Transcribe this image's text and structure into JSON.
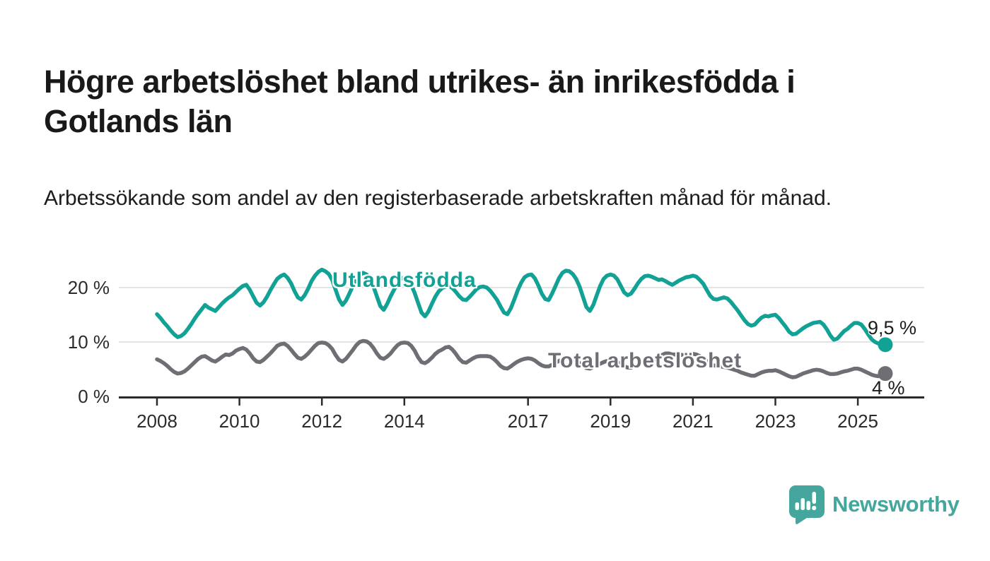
{
  "header": {
    "title": "Högre arbetslöshet bland utrikes- än inrikesfödda i Gotlands län",
    "subtitle": "Arbetssökande som andel av den registerbaserade arbetskraften månad för månad."
  },
  "colors": {
    "foreign_born_line": "#12a195",
    "total_line": "#716d74",
    "grid": "#e4e4e4",
    "axis": "#2b2b2b",
    "text": "#1a1a1a",
    "logo_teal": "#44a69d"
  },
  "chart_data": {
    "type": "line",
    "frequency": "monthly",
    "start": "2008-01",
    "end": "2025-09",
    "grid": "horizontal-only",
    "x_axis": {
      "ticks": [
        {
          "label": "2008",
          "year": 2008
        },
        {
          "label": "2010",
          "year": 2010
        },
        {
          "label": "2012",
          "year": 2012
        },
        {
          "label": "2014",
          "year": 2014
        },
        {
          "label": "2017",
          "year": 2017
        },
        {
          "label": "2019",
          "year": 2019
        },
        {
          "label": "2021",
          "year": 2021
        },
        {
          "label": "2023",
          "year": 2023
        },
        {
          "label": "2025",
          "year": 2025
        }
      ],
      "range_years": [
        2007.1,
        2026.6
      ]
    },
    "y_axis": {
      "ticks": [
        "0 %",
        "10 %",
        "20 %"
      ],
      "tick_values": [
        0,
        10,
        20
      ],
      "range": [
        0,
        24
      ],
      "unit": "%"
    },
    "series": [
      {
        "id": "utlandsfodda",
        "name": "Utlandsfödda",
        "color": "#12a195",
        "end_label": "9,5 %",
        "end_value": 9.5,
        "values": [
          15.1,
          14.4,
          13.6,
          12.9,
          12.1,
          11.4,
          10.9,
          11.1,
          11.6,
          12.4,
          13.3,
          14.3,
          15.2,
          16.0,
          16.8,
          16.3,
          16.0,
          15.7,
          16.4,
          17.1,
          17.7,
          18.2,
          18.6,
          19.2,
          19.8,
          20.3,
          20.5,
          19.6,
          18.4,
          17.2,
          16.7,
          17.3,
          18.3,
          19.5,
          20.6,
          21.6,
          22.1,
          22.4,
          21.8,
          20.8,
          19.4,
          18.2,
          17.8,
          18.6,
          19.8,
          21.2,
          22.2,
          22.9,
          23.3,
          23.0,
          22.5,
          21.4,
          19.6,
          17.8,
          16.8,
          17.6,
          18.9,
          20.3,
          21.5,
          22.3,
          22.7,
          22.4,
          21.6,
          20.2,
          18.4,
          16.6,
          15.9,
          17.0,
          18.4,
          19.6,
          20.8,
          21.6,
          21.9,
          21.4,
          20.5,
          19.0,
          17.2,
          15.4,
          14.7,
          15.6,
          17.0,
          18.3,
          19.3,
          19.9,
          20.2,
          20.3,
          19.9,
          19.2,
          18.4,
          17.8,
          17.7,
          18.3,
          19.0,
          19.7,
          20.1,
          20.2,
          20.0,
          19.4,
          18.6,
          17.7,
          16.5,
          15.4,
          15.1,
          16.2,
          17.8,
          19.5,
          20.9,
          21.9,
          22.3,
          22.4,
          21.7,
          20.4,
          18.9,
          17.9,
          17.7,
          18.9,
          20.3,
          21.7,
          22.7,
          23.1,
          23.0,
          22.5,
          21.6,
          20.2,
          18.3,
          16.4,
          15.7,
          16.8,
          18.6,
          20.3,
          21.6,
          22.2,
          22.4,
          22.2,
          21.5,
          20.3,
          19.1,
          18.6,
          18.9,
          19.8,
          20.8,
          21.6,
          22.1,
          22.2,
          22.0,
          21.7,
          21.4,
          21.5,
          21.2,
          20.8,
          20.5,
          20.9,
          21.3,
          21.6,
          21.9,
          22.0,
          22.2,
          22.0,
          21.4,
          20.7,
          19.6,
          18.5,
          17.9,
          17.8,
          18.0,
          18.2,
          18.0,
          17.4,
          16.6,
          15.8,
          14.9,
          14.0,
          13.3,
          13.0,
          13.2,
          13.9,
          14.5,
          14.8,
          14.7,
          14.9,
          15.0,
          14.4,
          13.6,
          12.8,
          11.9,
          11.4,
          11.5,
          12.0,
          12.5,
          12.9,
          13.2,
          13.5,
          13.6,
          13.7,
          13.2,
          12.3,
          11.2,
          10.4,
          10.6,
          11.3,
          12.0,
          12.4,
          13.0,
          13.5,
          13.5,
          13.2,
          12.4,
          11.4,
          10.5,
          10.0,
          9.7,
          9.5,
          9.5
        ]
      },
      {
        "id": "total",
        "name": "Total arbetslöshet",
        "color": "#716d74",
        "end_label": "4 %",
        "end_value": 4.2,
        "values": [
          6.8,
          6.5,
          6.1,
          5.6,
          5.0,
          4.5,
          4.2,
          4.3,
          4.6,
          5.1,
          5.7,
          6.3,
          6.9,
          7.3,
          7.4,
          7.0,
          6.6,
          6.4,
          6.8,
          7.3,
          7.7,
          7.6,
          7.9,
          8.4,
          8.7,
          8.9,
          8.6,
          7.9,
          7.0,
          6.4,
          6.3,
          6.7,
          7.3,
          7.9,
          8.6,
          9.3,
          9.6,
          9.7,
          9.3,
          8.6,
          7.8,
          7.1,
          6.9,
          7.3,
          7.9,
          8.6,
          9.3,
          9.8,
          9.9,
          9.8,
          9.4,
          8.7,
          7.6,
          6.7,
          6.4,
          6.9,
          7.7,
          8.5,
          9.4,
          10.0,
          10.2,
          10.1,
          9.7,
          8.9,
          7.9,
          7.1,
          6.9,
          7.3,
          7.9,
          8.7,
          9.4,
          9.8,
          9.9,
          9.8,
          9.3,
          8.4,
          7.2,
          6.3,
          6.1,
          6.5,
          7.1,
          7.8,
          8.3,
          8.6,
          9.0,
          9.1,
          8.6,
          7.8,
          6.9,
          6.3,
          6.2,
          6.6,
          7.0,
          7.3,
          7.4,
          7.4,
          7.4,
          7.3,
          6.9,
          6.3,
          5.6,
          5.2,
          5.1,
          5.5,
          6.0,
          6.4,
          6.7,
          6.9,
          7.0,
          6.9,
          6.6,
          6.1,
          5.7,
          5.5,
          5.5,
          5.8,
          6.2,
          6.5,
          6.8,
          7.0,
          7.0,
          6.9,
          6.6,
          6.1,
          5.6,
          5.2,
          5.1,
          5.4,
          5.7,
          6.0,
          6.3,
          6.5,
          6.6,
          6.5,
          6.3,
          5.9,
          5.5,
          5.3,
          5.3,
          5.6,
          5.9,
          6.2,
          6.5,
          6.7,
          6.8,
          6.8,
          7.0,
          7.6,
          7.9,
          7.9,
          7.7,
          7.7,
          7.7,
          7.6,
          7.6,
          7.7,
          7.8,
          7.7,
          7.4,
          7.0,
          6.5,
          6.0,
          5.7,
          5.6,
          5.5,
          5.4,
          5.3,
          5.1,
          4.9,
          4.7,
          4.4,
          4.2,
          4.0,
          3.8,
          3.8,
          4.1,
          4.4,
          4.6,
          4.7,
          4.7,
          4.8,
          4.6,
          4.3,
          4.0,
          3.7,
          3.5,
          3.6,
          3.9,
          4.2,
          4.4,
          4.6,
          4.8,
          4.9,
          4.8,
          4.6,
          4.3,
          4.1,
          4.1,
          4.2,
          4.4,
          4.6,
          4.7,
          4.9,
          5.1,
          5.1,
          4.9,
          4.6,
          4.3,
          4.0,
          3.8,
          3.7,
          3.9,
          4.2
        ]
      }
    ]
  },
  "footer": {
    "brand": "Newsworthy",
    "logo_icon": "newsworthy-speech-bubble-bar-chart-icon"
  }
}
